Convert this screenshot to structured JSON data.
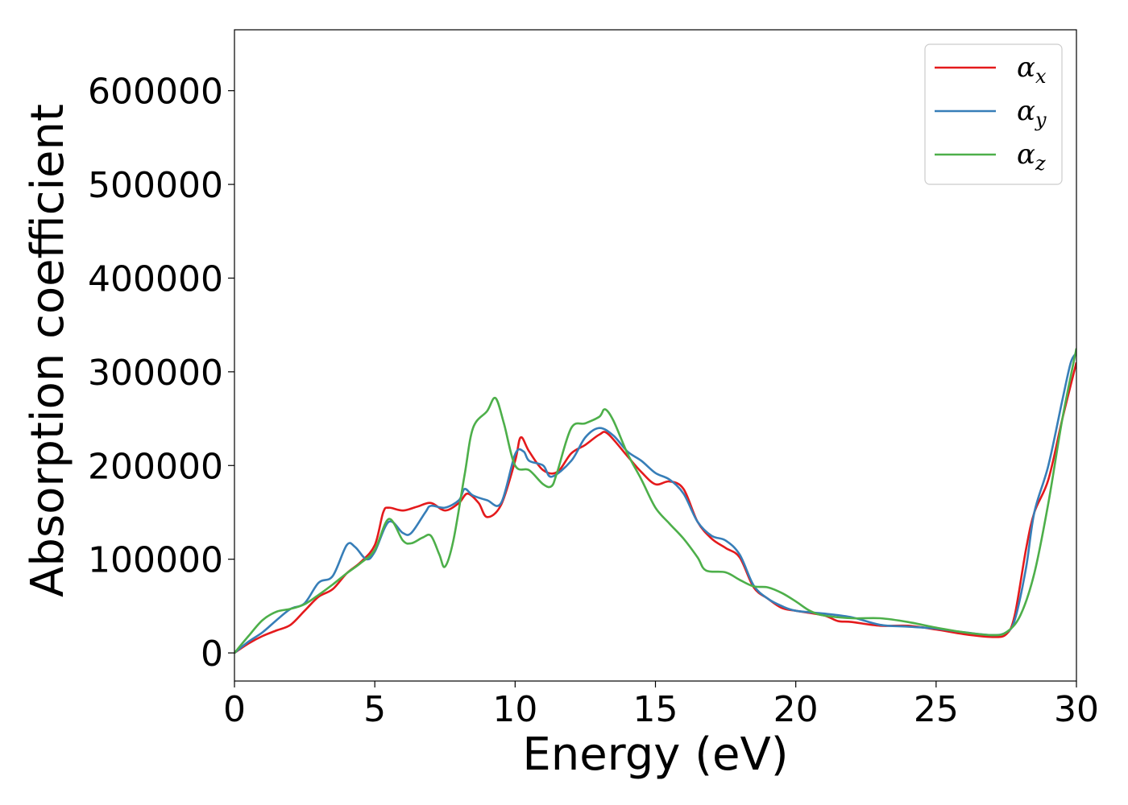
{
  "chart_data": {
    "type": "line",
    "xlabel": "Energy (eV)",
    "ylabel": "Absorption coefficient",
    "xlim": [
      0,
      30
    ],
    "ylim": [
      -30000,
      665000
    ],
    "xticks": [
      0,
      5,
      10,
      15,
      20,
      25,
      30
    ],
    "xtick_labels": [
      "0",
      "5",
      "10",
      "15",
      "20",
      "25",
      "30"
    ],
    "yticks": [
      0,
      100000,
      200000,
      300000,
      400000,
      500000,
      600000
    ],
    "ytick_labels": [
      "0",
      "100000",
      "200000",
      "300000",
      "400000",
      "500000",
      "600000"
    ],
    "grid": false,
    "legend_position": "top-right",
    "series": [
      {
        "name": "αx",
        "base": "α",
        "sub": "x",
        "color": "#e41a1c",
        "points": [
          [
            0,
            0
          ],
          [
            0.5,
            10000
          ],
          [
            1,
            18000
          ],
          [
            1.5,
            24000
          ],
          [
            2,
            30000
          ],
          [
            2.5,
            45000
          ],
          [
            3,
            60000
          ],
          [
            3.5,
            68000
          ],
          [
            4,
            85000
          ],
          [
            4.5,
            97000
          ],
          [
            5,
            115000
          ],
          [
            5.3,
            150000
          ],
          [
            5.5,
            155000
          ],
          [
            6,
            152000
          ],
          [
            6.5,
            156000
          ],
          [
            7,
            160000
          ],
          [
            7.5,
            152000
          ],
          [
            8,
            160000
          ],
          [
            8.3,
            170000
          ],
          [
            8.7,
            160000
          ],
          [
            9,
            145000
          ],
          [
            9.5,
            158000
          ],
          [
            10,
            205000
          ],
          [
            10.2,
            230000
          ],
          [
            10.5,
            215000
          ],
          [
            11,
            195000
          ],
          [
            11.5,
            193000
          ],
          [
            12,
            213000
          ],
          [
            12.5,
            222000
          ],
          [
            13,
            233000
          ],
          [
            13.3,
            234000
          ],
          [
            14,
            210000
          ],
          [
            14.5,
            193000
          ],
          [
            15,
            180000
          ],
          [
            15.5,
            183000
          ],
          [
            16,
            175000
          ],
          [
            16.5,
            140000
          ],
          [
            17,
            122000
          ],
          [
            17.5,
            112000
          ],
          [
            18,
            102000
          ],
          [
            18.5,
            70000
          ],
          [
            19,
            58000
          ],
          [
            19.5,
            48000
          ],
          [
            20,
            45000
          ],
          [
            21,
            40000
          ],
          [
            21.5,
            34000
          ],
          [
            22,
            33000
          ],
          [
            23,
            29000
          ],
          [
            24,
            29000
          ],
          [
            25,
            25000
          ],
          [
            26,
            20000
          ],
          [
            27,
            17000
          ],
          [
            27.5,
            20000
          ],
          [
            27.8,
            40000
          ],
          [
            28.2,
            110000
          ],
          [
            28.5,
            150000
          ],
          [
            29,
            185000
          ],
          [
            29.5,
            250000
          ],
          [
            30,
            310000
          ]
        ]
      },
      {
        "name": "αy",
        "base": "α",
        "sub": "y",
        "color": "#377eb8",
        "points": [
          [
            0,
            0
          ],
          [
            0.5,
            12000
          ],
          [
            1,
            22000
          ],
          [
            1.5,
            35000
          ],
          [
            2,
            47000
          ],
          [
            2.5,
            53000
          ],
          [
            3,
            75000
          ],
          [
            3.5,
            82000
          ],
          [
            4,
            115000
          ],
          [
            4.3,
            113000
          ],
          [
            4.7,
            100000
          ],
          [
            5,
            108000
          ],
          [
            5.5,
            140000
          ],
          [
            6,
            128000
          ],
          [
            6.3,
            128000
          ],
          [
            6.8,
            150000
          ],
          [
            7,
            157000
          ],
          [
            7.5,
            155000
          ],
          [
            8,
            163000
          ],
          [
            8.2,
            175000
          ],
          [
            8.5,
            168000
          ],
          [
            9,
            163000
          ],
          [
            9.5,
            160000
          ],
          [
            10,
            212000
          ],
          [
            10.3,
            215000
          ],
          [
            10.5,
            205000
          ],
          [
            11,
            200000
          ],
          [
            11.3,
            188000
          ],
          [
            12,
            205000
          ],
          [
            12.5,
            230000
          ],
          [
            13,
            240000
          ],
          [
            13.5,
            232000
          ],
          [
            14,
            215000
          ],
          [
            14.5,
            205000
          ],
          [
            15,
            192000
          ],
          [
            15.5,
            185000
          ],
          [
            16,
            170000
          ],
          [
            16.5,
            140000
          ],
          [
            17,
            125000
          ],
          [
            17.5,
            120000
          ],
          [
            18,
            105000
          ],
          [
            18.5,
            72000
          ],
          [
            19,
            58000
          ],
          [
            19.5,
            50000
          ],
          [
            20,
            45000
          ],
          [
            21,
            42000
          ],
          [
            22,
            38000
          ],
          [
            23,
            30000
          ],
          [
            24,
            28000
          ],
          [
            25,
            26000
          ],
          [
            26,
            22000
          ],
          [
            27,
            19000
          ],
          [
            27.5,
            22000
          ],
          [
            27.8,
            35000
          ],
          [
            28.2,
            90000
          ],
          [
            28.5,
            150000
          ],
          [
            29,
            200000
          ],
          [
            29.5,
            270000
          ],
          [
            29.8,
            310000
          ],
          [
            30,
            320000
          ]
        ]
      },
      {
        "name": "αz",
        "base": "α",
        "sub": "z",
        "color": "#4daf4a",
        "points": [
          [
            0,
            0
          ],
          [
            0.5,
            18000
          ],
          [
            1,
            35000
          ],
          [
            1.5,
            44000
          ],
          [
            2,
            47000
          ],
          [
            2.5,
            52000
          ],
          [
            3,
            62000
          ],
          [
            3.5,
            73000
          ],
          [
            4,
            85000
          ],
          [
            4.5,
            96000
          ],
          [
            5,
            110000
          ],
          [
            5.5,
            143000
          ],
          [
            6,
            120000
          ],
          [
            6.3,
            117000
          ],
          [
            6.7,
            123000
          ],
          [
            7,
            125000
          ],
          [
            7.3,
            105000
          ],
          [
            7.5,
            92000
          ],
          [
            7.8,
            120000
          ],
          [
            8.2,
            190000
          ],
          [
            8.5,
            240000
          ],
          [
            9,
            258000
          ],
          [
            9.3,
            272000
          ],
          [
            9.6,
            245000
          ],
          [
            10,
            200000
          ],
          [
            10.5,
            195000
          ],
          [
            11,
            180000
          ],
          [
            11.3,
            178000
          ],
          [
            11.5,
            193000
          ],
          [
            12,
            240000
          ],
          [
            12.5,
            245000
          ],
          [
            13,
            252000
          ],
          [
            13.2,
            260000
          ],
          [
            13.5,
            248000
          ],
          [
            14,
            213000
          ],
          [
            14.5,
            185000
          ],
          [
            15,
            155000
          ],
          [
            15.5,
            138000
          ],
          [
            16,
            122000
          ],
          [
            16.5,
            102000
          ],
          [
            16.8,
            88000
          ],
          [
            17.5,
            86000
          ],
          [
            18,
            78000
          ],
          [
            18.5,
            71000
          ],
          [
            19,
            70000
          ],
          [
            19.5,
            64000
          ],
          [
            20,
            55000
          ],
          [
            20.5,
            45000
          ],
          [
            21,
            40000
          ],
          [
            22,
            37000
          ],
          [
            23,
            37000
          ],
          [
            24,
            33000
          ],
          [
            25,
            27000
          ],
          [
            26,
            22000
          ],
          [
            27,
            19000
          ],
          [
            27.5,
            22000
          ],
          [
            28,
            40000
          ],
          [
            28.5,
            85000
          ],
          [
            29,
            160000
          ],
          [
            29.5,
            250000
          ],
          [
            30,
            325000
          ]
        ]
      }
    ]
  }
}
